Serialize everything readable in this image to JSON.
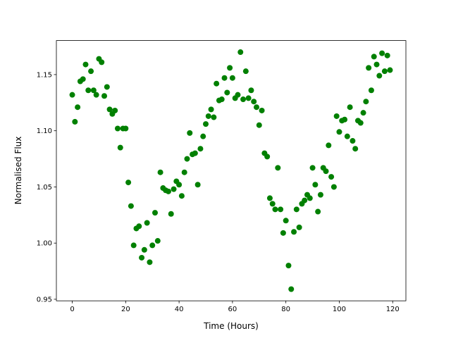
{
  "chart_data": {
    "type": "scatter",
    "xlabel": "Time (Hours)",
    "ylabel": "Normalised Flux",
    "x": [
      0,
      1,
      2,
      3,
      4,
      5,
      6,
      7,
      8,
      9,
      10,
      11,
      12,
      13,
      14,
      15,
      16,
      17,
      18,
      19,
      20,
      21,
      22,
      23,
      24,
      25,
      26,
      27,
      28,
      29,
      30,
      31,
      32,
      33,
      34,
      35,
      36,
      37,
      38,
      39,
      40,
      41,
      42,
      43,
      44,
      45,
      46,
      47,
      48,
      49,
      50,
      51,
      52,
      53,
      54,
      55,
      56,
      57,
      58,
      59,
      60,
      61,
      62,
      63,
      64,
      65,
      66,
      67,
      68,
      69,
      70,
      71,
      72,
      73,
      74,
      75,
      76,
      77,
      78,
      79,
      80,
      81,
      82,
      83,
      84,
      85,
      86,
      87,
      88,
      89,
      90,
      91,
      92,
      93,
      94,
      95,
      96,
      97,
      98,
      99,
      100,
      101,
      102,
      103,
      104,
      105,
      106,
      107,
      108,
      109,
      110,
      111,
      112,
      113,
      114,
      115,
      116,
      117,
      118,
      119
    ],
    "series": [
      {
        "color": "#008000",
        "values": [
          1.132,
          1.108,
          1.121,
          1.144,
          1.146,
          1.159,
          1.136,
          1.153,
          1.136,
          1.132,
          1.164,
          1.161,
          1.131,
          1.139,
          1.119,
          1.115,
          1.118,
          1.102,
          1.085,
          1.102,
          1.102,
          1.054,
          1.033,
          0.998,
          1.013,
          1.015,
          0.987,
          0.994,
          1.018,
          0.983,
          0.998,
          1.027,
          1.002,
          1.063,
          1.049,
          1.047,
          1.046,
          1.026,
          1.048,
          1.055,
          1.052,
          1.042,
          1.063,
          1.075,
          1.098,
          1.079,
          1.08,
          1.052,
          1.084,
          1.095,
          1.106,
          1.113,
          1.119,
          1.112,
          1.142,
          1.127,
          1.128,
          1.147,
          1.134,
          1.156,
          1.147,
          1.129,
          1.132,
          1.17,
          1.128,
          1.153,
          1.129,
          1.136,
          1.126,
          1.121,
          1.105,
          1.118,
          1.08,
          1.077,
          1.04,
          1.035,
          1.03,
          1.067,
          1.03,
          1.009,
          1.02,
          0.98,
          0.959,
          1.01,
          1.03,
          1.014,
          1.035,
          1.038,
          1.043,
          1.04,
          1.067,
          1.052,
          1.028,
          1.043,
          1.067,
          1.064,
          1.087,
          1.059,
          1.05,
          1.113,
          1.099,
          1.109,
          1.11,
          1.095,
          1.121,
          1.091,
          1.084,
          1.109,
          1.107,
          1.116,
          1.126,
          1.156,
          1.136,
          1.166,
          1.159,
          1.149,
          1.169,
          1.153,
          1.167,
          1.154
        ]
      }
    ],
    "xlim": [
      -5.95,
      124.95
    ],
    "ylim": [
      0.9486,
      1.1803
    ],
    "xticks": [
      0,
      20,
      40,
      60,
      80,
      100,
      120
    ],
    "yticks": [
      0.95,
      {
        "value": 1.0,
        "label": "1.00"
      },
      1.05,
      {
        "value": 1.1,
        "label": "1.10"
      },
      1.15
    ]
  }
}
